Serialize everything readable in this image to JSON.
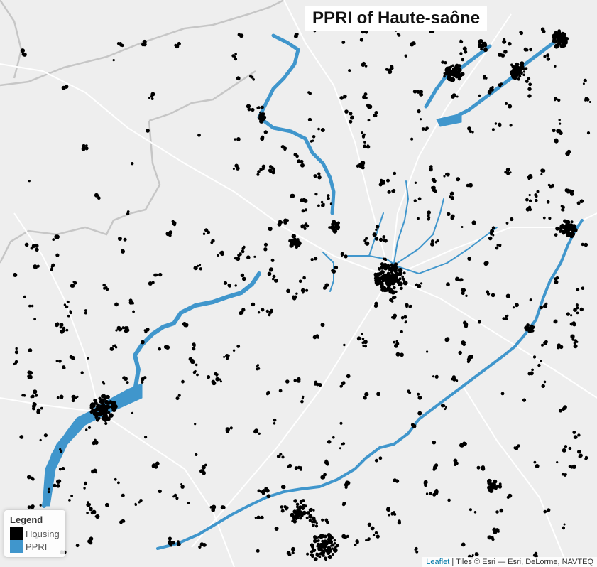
{
  "map": {
    "title": "PPRI of Haute-saône",
    "basemap_color": "#eeeeee",
    "border_color": "#c8c8c8",
    "road_color": "#ffffff"
  },
  "legend": {
    "title": "Legend",
    "items": [
      {
        "label": "Housing",
        "color": "#000000"
      },
      {
        "label": "PPRI",
        "color": "#4096cc"
      }
    ]
  },
  "attribution": {
    "link_text": "Leaflet",
    "text": " | Tiles © Esri — Esri, DeLorme, NAVTEQ"
  }
}
